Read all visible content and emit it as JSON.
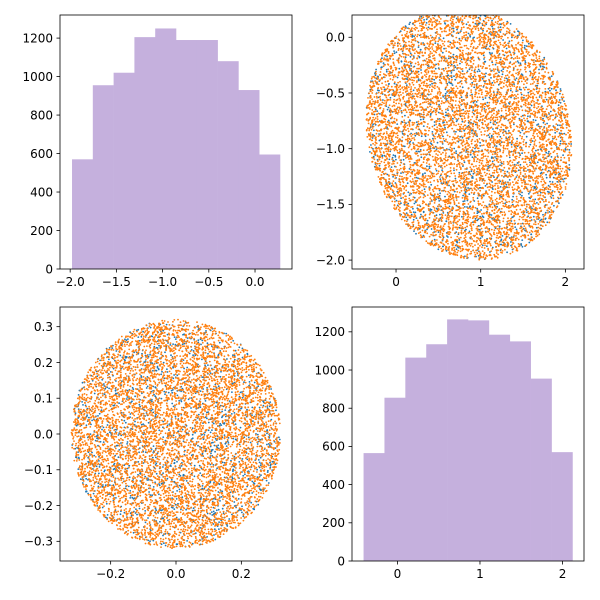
{
  "colors": {
    "hist": "#c5b0dd",
    "scatter_a": "#1f77b4",
    "scatter_b": "#ff7f0e",
    "axis": "#000000"
  },
  "chart_data": [
    {
      "type": "bar",
      "subtype": "histogram",
      "panel": "top-left",
      "bin_edges": [
        -1.98,
        -1.755,
        -1.53,
        -1.305,
        -1.08,
        -0.855,
        -0.63,
        -0.405,
        -0.18,
        0.045,
        0.27
      ],
      "values": [
        570,
        955,
        1020,
        1205,
        1250,
        1190,
        1190,
        1080,
        930,
        595
      ],
      "xlim": [
        -2.11,
        0.4
      ],
      "ylim": [
        0,
        1320
      ],
      "xticks": [
        -2.0,
        -1.5,
        -1.0,
        -0.5,
        0.0
      ],
      "xtick_labels": [
        "−2.0",
        "−1.5",
        "−1.0",
        "−0.5",
        "0.0"
      ],
      "yticks": [
        0,
        200,
        400,
        600,
        800,
        1000,
        1200
      ],
      "ytick_labels": [
        "0",
        "200",
        "400",
        "600",
        "800",
        "1000",
        "1200"
      ],
      "grid": false
    },
    {
      "type": "scatter",
      "panel": "top-right",
      "shape": "ellipse",
      "center": [
        0.86,
        -0.86
      ],
      "radii": [
        1.25,
        1.1
      ],
      "tilt_deg": -30,
      "series": [
        {
          "color": "#1f77b4",
          "points": 1500
        },
        {
          "color": "#ff7f0e",
          "points": 6500
        }
      ],
      "xlim": [
        -0.52,
        2.22
      ],
      "ylim": [
        -2.08,
        0.2
      ],
      "xticks": [
        0,
        1,
        2
      ],
      "xtick_labels": [
        "0",
        "1",
        "2"
      ],
      "yticks": [
        -2.0,
        -1.5,
        -1.0,
        -0.5,
        0.0
      ],
      "ytick_labels": [
        "−2.0",
        "−1.5",
        "−1.0",
        "−0.5",
        "0.0"
      ],
      "grid": false
    },
    {
      "type": "scatter",
      "panel": "bottom-left",
      "shape": "circle",
      "center": [
        0.0,
        0.0
      ],
      "radii": [
        0.32,
        0.32
      ],
      "tilt_deg": 0,
      "series": [
        {
          "color": "#1f77b4",
          "points": 1500
        },
        {
          "color": "#ff7f0e",
          "points": 6500
        }
      ],
      "xlim": [
        -0.355,
        0.355
      ],
      "ylim": [
        -0.355,
        0.355
      ],
      "xticks": [
        -0.2,
        0.0,
        0.2
      ],
      "xtick_labels": [
        "−0.2",
        "0.0",
        "0.2"
      ],
      "yticks": [
        -0.3,
        -0.2,
        -0.1,
        0.0,
        0.1,
        0.2,
        0.3
      ],
      "ytick_labels": [
        "−0.3",
        "−0.2",
        "−0.1",
        "0.0",
        "0.1",
        "0.2",
        "0.3"
      ],
      "grid": false
    },
    {
      "type": "bar",
      "subtype": "histogram",
      "panel": "bottom-right",
      "bin_edges": [
        -0.41,
        -0.157,
        0.096,
        0.349,
        0.602,
        0.855,
        1.108,
        1.361,
        1.614,
        1.867,
        2.12
      ],
      "values": [
        565,
        855,
        1065,
        1135,
        1265,
        1260,
        1185,
        1150,
        955,
        570
      ],
      "xlim": [
        -0.55,
        2.26
      ],
      "ylim": [
        0,
        1330
      ],
      "xticks": [
        0,
        1,
        2
      ],
      "xtick_labels": [
        "0",
        "1",
        "2"
      ],
      "yticks": [
        0,
        200,
        400,
        600,
        800,
        1000,
        1200
      ],
      "ytick_labels": [
        "0",
        "200",
        "400",
        "600",
        "800",
        "1000",
        "1200"
      ],
      "grid": false
    }
  ]
}
